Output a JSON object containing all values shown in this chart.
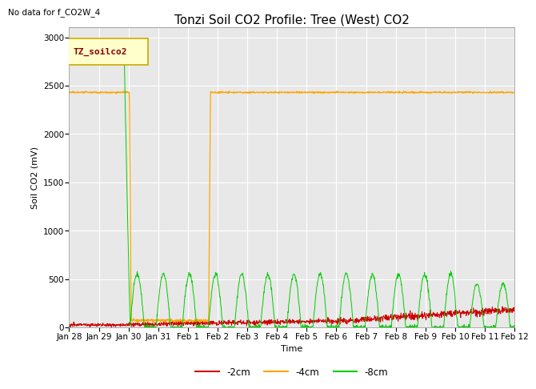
{
  "title": "Tonzi Soil CO2 Profile: Tree (West) CO2",
  "no_data_label": "No data for f_CO2W_4",
  "ylabel": "Soil CO2 (mV)",
  "xlabel": "Time",
  "legend_label": "TZ_soilco2",
  "series_labels": [
    "-2cm",
    "-4cm",
    "-8cm"
  ],
  "series_colors": [
    "#cc0000",
    "#ffa500",
    "#00cc00"
  ],
  "ylim": [
    0,
    3100
  ],
  "yticks": [
    0,
    500,
    1000,
    1500,
    2000,
    2500,
    3000
  ],
  "bg_color": "#e8e8e8",
  "fig_color": "#ffffff",
  "title_fontsize": 11,
  "axis_fontsize": 8,
  "tick_fontsize": 7.5
}
